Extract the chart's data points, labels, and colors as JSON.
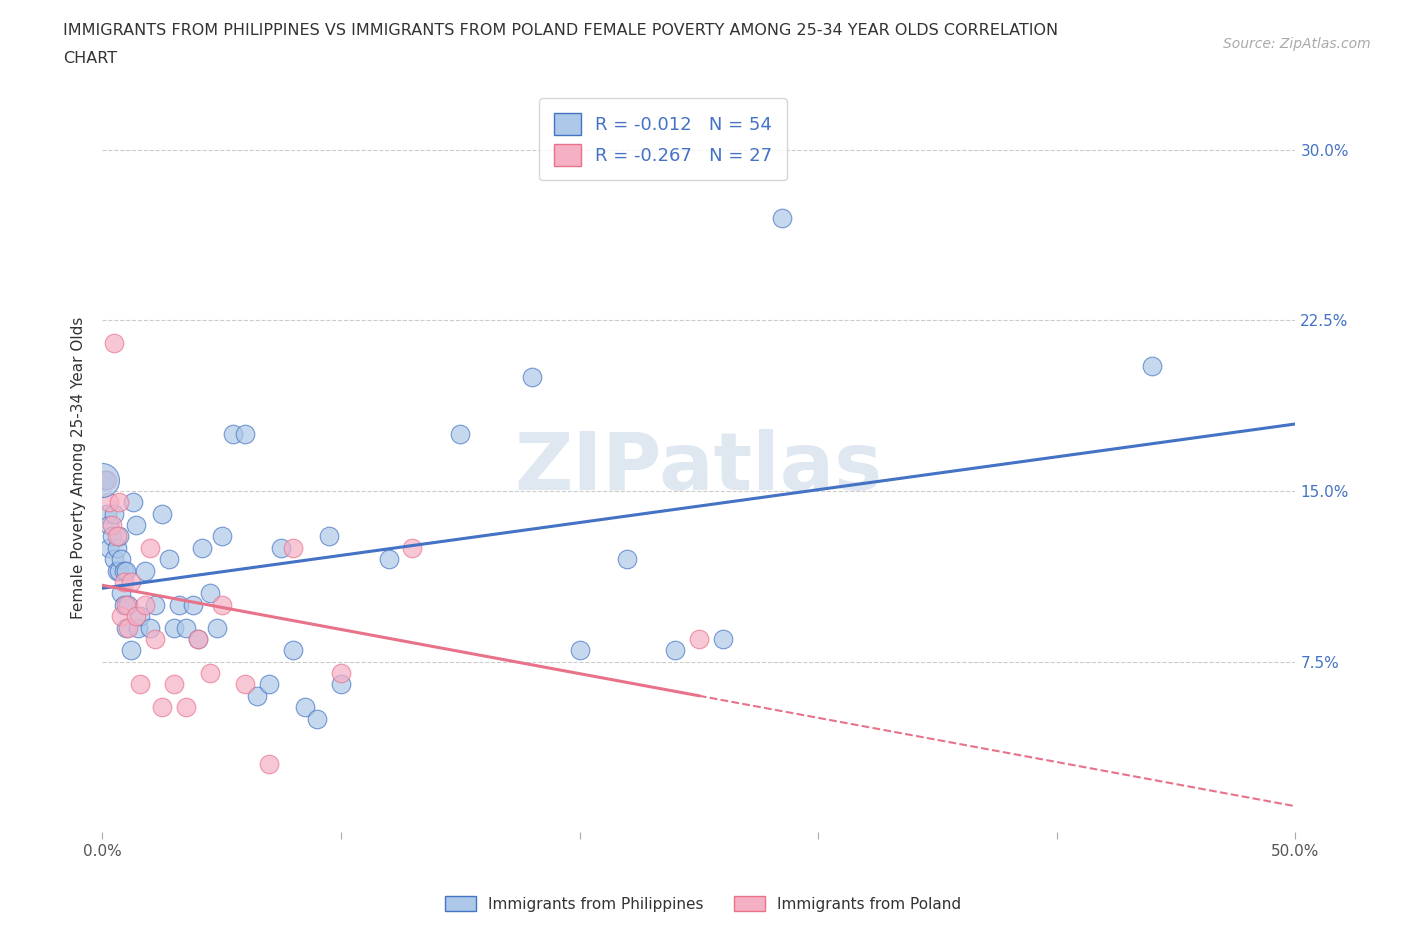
{
  "title_line1": "IMMIGRANTS FROM PHILIPPINES VS IMMIGRANTS FROM POLAND FEMALE POVERTY AMONG 25-34 YEAR OLDS CORRELATION",
  "title_line2": "CHART",
  "source_text": "Source: ZipAtlas.com",
  "ylabel": "Female Poverty Among 25-34 Year Olds",
  "xlim": [
    0.0,
    0.5
  ],
  "ylim": [
    0.0,
    0.32
  ],
  "xticks": [
    0.0,
    0.1,
    0.2,
    0.3,
    0.4,
    0.5
  ],
  "xticklabels": [
    "0.0%",
    "",
    "",
    "",
    "",
    "50.0%"
  ],
  "yticks": [
    0.0,
    0.075,
    0.15,
    0.225,
    0.3
  ],
  "left_yticklabels": [
    "",
    "",
    "",
    "",
    ""
  ],
  "right_yticklabels": [
    "",
    "7.5%",
    "15.0%",
    "22.5%",
    "30.0%"
  ],
  "philippines_R": -0.012,
  "philippines_N": 54,
  "poland_R": -0.267,
  "poland_N": 27,
  "philippines_color": "#adc8e8",
  "poland_color": "#f5b0c5",
  "philippines_line_color": "#4472c4",
  "poland_line_color": "#e8728a",
  "watermark": "ZIPatlas",
  "legend_label_phil": "Immigrants from Philippines",
  "legend_label_pol": "Immigrants from Poland",
  "philippines_x": [
    0.001,
    0.002,
    0.003,
    0.003,
    0.004,
    0.005,
    0.005,
    0.006,
    0.006,
    0.007,
    0.007,
    0.008,
    0.008,
    0.009,
    0.009,
    0.01,
    0.01,
    0.011,
    0.012,
    0.013,
    0.014,
    0.015,
    0.016,
    0.018,
    0.02,
    0.022,
    0.025,
    0.028,
    0.03,
    0.032,
    0.035,
    0.038,
    0.04,
    0.042,
    0.045,
    0.048,
    0.05,
    0.055,
    0.06,
    0.065,
    0.07,
    0.075,
    0.08,
    0.085,
    0.09,
    0.095,
    0.1,
    0.12,
    0.15,
    0.18,
    0.2,
    0.22,
    0.24,
    0.26
  ],
  "philippines_y": [
    0.155,
    0.14,
    0.135,
    0.125,
    0.13,
    0.14,
    0.12,
    0.115,
    0.125,
    0.13,
    0.115,
    0.12,
    0.105,
    0.115,
    0.1,
    0.09,
    0.115,
    0.1,
    0.08,
    0.145,
    0.135,
    0.09,
    0.095,
    0.115,
    0.09,
    0.1,
    0.14,
    0.12,
    0.09,
    0.1,
    0.09,
    0.1,
    0.085,
    0.125,
    0.105,
    0.09,
    0.13,
    0.175,
    0.175,
    0.06,
    0.065,
    0.125,
    0.08,
    0.055,
    0.05,
    0.13,
    0.065,
    0.12,
    0.175,
    0.2,
    0.08,
    0.12,
    0.08,
    0.085
  ],
  "philippines_outlier_x": [
    0.285
  ],
  "philippines_outlier_y": [
    0.27
  ],
  "philippines_big_x": [
    0.44
  ],
  "philippines_big_y": [
    0.205
  ],
  "poland_x": [
    0.002,
    0.003,
    0.004,
    0.005,
    0.006,
    0.007,
    0.008,
    0.009,
    0.01,
    0.011,
    0.012,
    0.014,
    0.016,
    0.018,
    0.02,
    0.022,
    0.025,
    0.03,
    0.035,
    0.04,
    0.045,
    0.05,
    0.06,
    0.07,
    0.08,
    0.1,
    0.25
  ],
  "poland_y": [
    0.155,
    0.145,
    0.135,
    0.215,
    0.13,
    0.145,
    0.095,
    0.11,
    0.1,
    0.09,
    0.11,
    0.095,
    0.065,
    0.1,
    0.125,
    0.085,
    0.055,
    0.065,
    0.055,
    0.085,
    0.07,
    0.1,
    0.065,
    0.03,
    0.125,
    0.07,
    0.085
  ],
  "poland_outlier_x": [
    0.13
  ],
  "poland_outlier_y": [
    0.125
  ]
}
